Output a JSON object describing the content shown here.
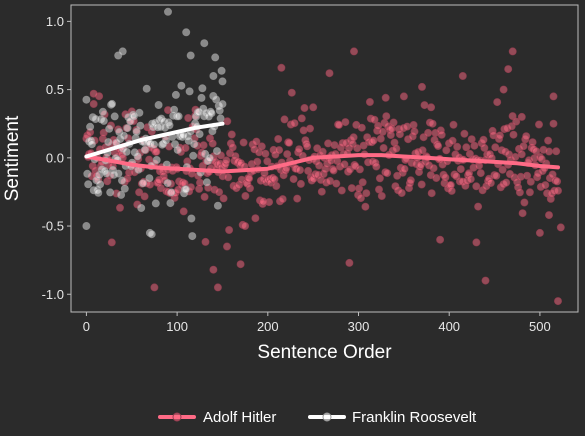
{
  "chart_data": {
    "type": "scatter",
    "title": "",
    "xlabel": "Sentence Order",
    "ylabel": "Sentiment",
    "xlim": [
      -17,
      542
    ],
    "ylim": [
      -1.13,
      1.12
    ],
    "x_ticks": [
      0,
      100,
      200,
      300,
      400,
      500
    ],
    "y_ticks": [
      -1.0,
      -0.5,
      0.0,
      0.5,
      1.0
    ],
    "x_tick_labels": [
      "0",
      "100",
      "200",
      "300",
      "400",
      "500"
    ],
    "y_tick_labels": [
      "-1.0",
      "-0.5",
      "0.0",
      "0.5",
      "1.0"
    ],
    "grid": false,
    "legend_position": "bottom",
    "colors": {
      "background": "#2b2b2b",
      "axis": "#bdbdbd",
      "hitler": "#ff6b86",
      "roosevelt": "#ffffff"
    },
    "series": [
      {
        "name": "Adolf Hitler",
        "color": "#ff6b86",
        "n_points": 520,
        "smooth": [
          [
            0,
            0.01
          ],
          [
            25,
            -0.02
          ],
          [
            50,
            -0.05
          ],
          [
            75,
            -0.07
          ],
          [
            100,
            -0.08
          ],
          [
            125,
            -0.09
          ],
          [
            150,
            -0.1
          ],
          [
            175,
            -0.09
          ],
          [
            200,
            -0.08
          ],
          [
            225,
            -0.04
          ],
          [
            250,
            0.0
          ],
          [
            275,
            0.01
          ],
          [
            300,
            0.02
          ],
          [
            325,
            0.02
          ],
          [
            350,
            0.01
          ],
          [
            375,
            0.0
          ],
          [
            400,
            -0.01
          ],
          [
            425,
            -0.02
          ],
          [
            450,
            -0.03
          ],
          [
            475,
            -0.04
          ],
          [
            500,
            -0.06
          ],
          [
            520,
            -0.07
          ]
        ],
        "outliers": [
          [
            8,
            0.47
          ],
          [
            28,
            -0.62
          ],
          [
            75,
            -0.95
          ],
          [
            90,
            0.35
          ],
          [
            120,
            0.31
          ],
          [
            140,
            -0.82
          ],
          [
            145,
            -0.95
          ],
          [
            155,
            -0.65
          ],
          [
            170,
            -0.78
          ],
          [
            175,
            -0.5
          ],
          [
            195,
            -0.32
          ],
          [
            215,
            0.66
          ],
          [
            250,
            0.37
          ],
          [
            268,
            0.62
          ],
          [
            295,
            0.78
          ],
          [
            290,
            -0.77
          ],
          [
            330,
            0.44
          ],
          [
            350,
            0.45
          ],
          [
            370,
            0.52
          ],
          [
            380,
            0.37
          ],
          [
            390,
            -0.6
          ],
          [
            415,
            0.6
          ],
          [
            430,
            -0.62
          ],
          [
            440,
            -0.9
          ],
          [
            460,
            0.5
          ],
          [
            465,
            0.65
          ],
          [
            470,
            0.78
          ],
          [
            480,
            0.3
          ],
          [
            500,
            -0.55
          ],
          [
            510,
            -0.42
          ],
          [
            515,
            0.45
          ],
          [
            520,
            -1.05
          ],
          [
            523,
            -0.51
          ]
        ]
      },
      {
        "name": "Franklin Roosevelt",
        "color": "#ffffff",
        "n_points": 150,
        "smooth": [
          [
            0,
            0.01
          ],
          [
            20,
            0.05
          ],
          [
            40,
            0.09
          ],
          [
            60,
            0.13
          ],
          [
            80,
            0.16
          ],
          [
            100,
            0.19
          ],
          [
            120,
            0.22
          ],
          [
            150,
            0.25
          ]
        ],
        "outliers": [
          [
            0,
            -0.5
          ],
          [
            35,
            0.75
          ],
          [
            40,
            0.78
          ],
          [
            70,
            -0.55
          ],
          [
            72,
            -0.56
          ],
          [
            90,
            1.07
          ],
          [
            110,
            0.92
          ],
          [
            115,
            0.75
          ],
          [
            130,
            0.84
          ],
          [
            140,
            0.6
          ],
          [
            150,
            0.56
          ]
        ]
      }
    ]
  }
}
